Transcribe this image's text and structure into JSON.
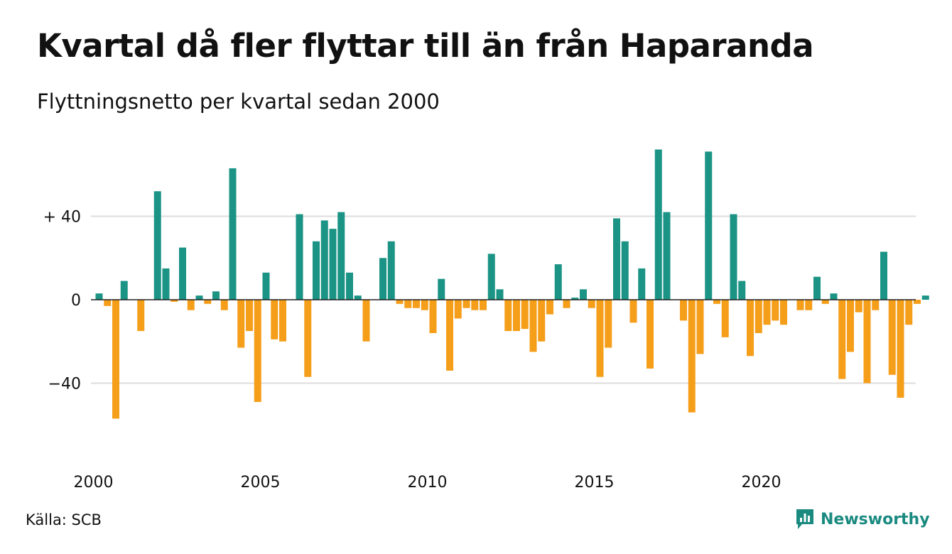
{
  "title": "Kvartal då fler flyttar till än från Haparanda",
  "subtitle": "Flyttningsnetto per kvartal sedan 2000",
  "source": "Källa: SCB",
  "brand": {
    "name": "Newsworthy",
    "icon": "newsworthy-logo-icon"
  },
  "colors": {
    "positive": "#1b9385",
    "negative": "#f59e1a",
    "gridline": "#dddddd",
    "zero_line": "#222222",
    "brand": "#1a8a80"
  },
  "chart_data": {
    "type": "bar",
    "title": "Kvartal då fler flyttar till än från Haparanda",
    "subtitle": "Flyttningsnetto per kvartal sedan 2000",
    "xlabel": "",
    "ylabel": "",
    "x_tick_labels": [
      "2000",
      "2005",
      "2010",
      "2015",
      "2020"
    ],
    "y_ticks": [
      {
        "value": 40,
        "label": "+ 40"
      },
      {
        "value": 0,
        "label": "0"
      },
      {
        "value": -40,
        "label": "−40"
      }
    ],
    "ylim": [
      -72,
      74
    ],
    "grid": true,
    "legend": "none",
    "categories": [
      "2000 Q1",
      "2000 Q2",
      "2000 Q3",
      "2000 Q4",
      "2001 Q1",
      "2001 Q2",
      "2001 Q3",
      "2001 Q4",
      "2002 Q1",
      "2002 Q2",
      "2002 Q3",
      "2002 Q4",
      "2003 Q1",
      "2003 Q2",
      "2003 Q3",
      "2003 Q4",
      "2004 Q1",
      "2004 Q2",
      "2004 Q3",
      "2004 Q4",
      "2005 Q1",
      "2005 Q2",
      "2005 Q3",
      "2005 Q4",
      "2006 Q1",
      "2006 Q2",
      "2006 Q3",
      "2006 Q4",
      "2007 Q1",
      "2007 Q2",
      "2007 Q3",
      "2007 Q4",
      "2008 Q1",
      "2008 Q2",
      "2008 Q3",
      "2008 Q4",
      "2009 Q1",
      "2009 Q2",
      "2009 Q3",
      "2009 Q4",
      "2010 Q1",
      "2010 Q2",
      "2010 Q3",
      "2010 Q4",
      "2011 Q1",
      "2011 Q2",
      "2011 Q3",
      "2011 Q4",
      "2012 Q1",
      "2012 Q2",
      "2012 Q3",
      "2012 Q4",
      "2013 Q1",
      "2013 Q2",
      "2013 Q3",
      "2013 Q4",
      "2014 Q1",
      "2014 Q2",
      "2014 Q3",
      "2014 Q4",
      "2015 Q1",
      "2015 Q2",
      "2015 Q3",
      "2015 Q4",
      "2016 Q1",
      "2016 Q2",
      "2016 Q3",
      "2016 Q4",
      "2017 Q1",
      "2017 Q2",
      "2017 Q3",
      "2017 Q4",
      "2018 Q1",
      "2018 Q2",
      "2018 Q3",
      "2018 Q4",
      "2019 Q1",
      "2019 Q2",
      "2019 Q3",
      "2019 Q4",
      "2020 Q1",
      "2020 Q2",
      "2020 Q3",
      "2020 Q4",
      "2021 Q1",
      "2021 Q2",
      "2021 Q3",
      "2021 Q4",
      "2022 Q1",
      "2022 Q2",
      "2022 Q3",
      "2022 Q4",
      "2023 Q1",
      "2023 Q2",
      "2023 Q3",
      "2023 Q4",
      "2024 Q1",
      "2024 Q2",
      "2024 Q3",
      "2024 Q4"
    ],
    "values": [
      3,
      -3,
      -57,
      9,
      0,
      -15,
      0,
      52,
      15,
      -1,
      25,
      -5,
      2,
      -2,
      4,
      -5,
      63,
      -23,
      -15,
      -49,
      13,
      -19,
      -20,
      0,
      41,
      -37,
      28,
      38,
      34,
      42,
      13,
      2,
      -20,
      0,
      20,
      28,
      -2,
      -4,
      -4,
      -5,
      -16,
      10,
      -34,
      -9,
      -4,
      -5,
      -5,
      22,
      5,
      -15,
      -15,
      -14,
      -25,
      -20,
      -7,
      17,
      -4,
      1,
      5,
      -4,
      -37,
      -23,
      39,
      28,
      -11,
      15,
      -33,
      72,
      42,
      0,
      -10,
      -54,
      -26,
      71,
      -2,
      -18,
      41,
      9,
      -27,
      -16,
      -12,
      -10,
      -12,
      0,
      -5,
      -5,
      11,
      -2,
      3,
      -38,
      -25,
      -6,
      -40,
      -5,
      23,
      -36,
      -47,
      -12,
      -2,
      2
    ]
  }
}
